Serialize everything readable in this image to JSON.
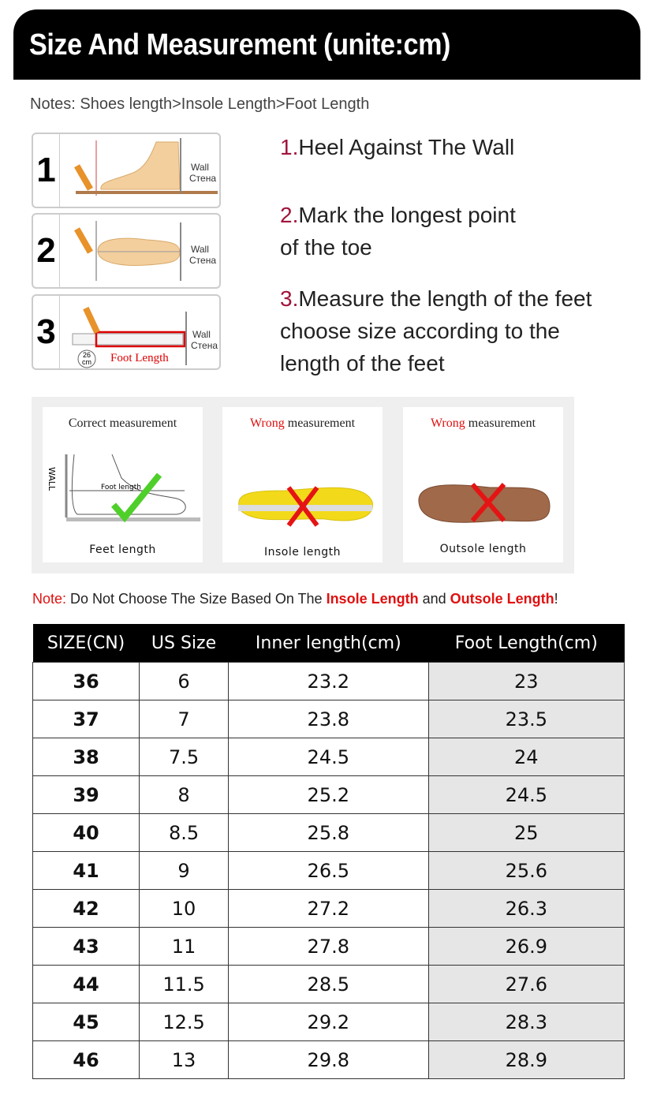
{
  "header": {
    "title": "Size And Measurement (unite:cm)"
  },
  "notes": "Notes: Shoes length>Insole Length>Foot Length",
  "steps": [
    {
      "number": "1",
      "num_label": "1.",
      "text_lines": [
        "Heel Against The Wall"
      ],
      "wall": "Wall",
      "wall_ru": "Стена"
    },
    {
      "number": "2",
      "num_label": "2.",
      "text_lines": [
        "Mark the longest point",
        "of the toe"
      ],
      "wall": "Wall",
      "wall_ru": "Стена"
    },
    {
      "number": "3",
      "num_label": "3.",
      "text_lines": [
        "Measure the length of the feet",
        "choose size according to the",
        "length of the feet"
      ],
      "wall": "Wall",
      "wall_ru": "Стена",
      "foot_length": "Foot Length",
      "badge_num": "26",
      "badge_unit": "cm"
    }
  ],
  "measurements": [
    {
      "prefix": "Correct",
      "suffix": " measurement",
      "caption": "Feet length",
      "wall": "WALL",
      "inner_label": "Foot length",
      "correct": true
    },
    {
      "prefix": "Wrong",
      "suffix": " measurement",
      "caption": "Insole length",
      "correct": false
    },
    {
      "prefix": "Wrong",
      "suffix": " measurement",
      "caption": "Outsole length",
      "correct": false
    }
  ],
  "warning": {
    "label": "Note:",
    "text1": " Do Not Choose The Size Based On The ",
    "insole": "Insole Length",
    "and": " and ",
    "outsole": "Outsole Length",
    "end": "!"
  },
  "colors": {
    "accent_red": "#e01010",
    "step_number": "#a0143c",
    "header_bg": "#000000",
    "foot_column_bg": "#e6e6e6"
  },
  "table": {
    "headers": [
      "SIZE(CN)",
      "US Size",
      "Inner length(cm)",
      "Foot Length(cm)"
    ],
    "rows": [
      [
        "36",
        "6",
        "23.2",
        "23"
      ],
      [
        "37",
        "7",
        "23.8",
        "23.5"
      ],
      [
        "38",
        "7.5",
        "24.5",
        "24"
      ],
      [
        "39",
        "8",
        "25.2",
        "24.5"
      ],
      [
        "40",
        "8.5",
        "25.8",
        "25"
      ],
      [
        "41",
        "9",
        "26.5",
        "25.6"
      ],
      [
        "42",
        "10",
        "27.2",
        "26.3"
      ],
      [
        "43",
        "11",
        "27.8",
        "26.9"
      ],
      [
        "44",
        "11.5",
        "28.5",
        "27.6"
      ],
      [
        "45",
        "12.5",
        "29.2",
        "28.3"
      ],
      [
        "46",
        "13",
        "29.8",
        "28.9"
      ]
    ]
  }
}
